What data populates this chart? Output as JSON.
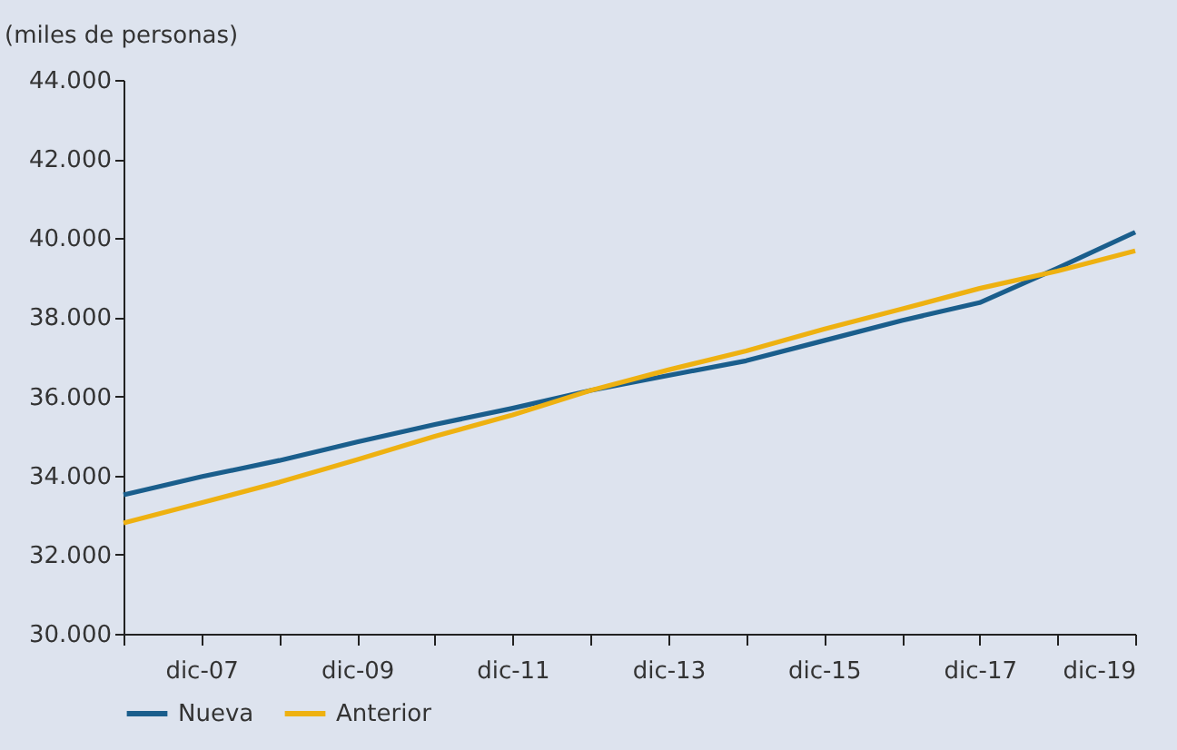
{
  "chart_data": {
    "type": "line",
    "ylabel": "(miles de personas)",
    "x": [
      "2006-12",
      "2007-12",
      "2008-12",
      "2009-12",
      "2010-12",
      "2011-12",
      "2012-12",
      "2013-12",
      "2014-12",
      "2015-12",
      "2016-12",
      "2017-12",
      "2018-12",
      "2019-12"
    ],
    "series": [
      {
        "name": "Nueva",
        "color": "#1a5e8c",
        "values": [
          33510,
          33970,
          34380,
          34850,
          35290,
          35700,
          36150,
          36530,
          36900,
          37410,
          37920,
          38370,
          39240,
          40150
        ]
      },
      {
        "name": "Anterior",
        "color": "#eeb111",
        "values": [
          32800,
          33310,
          33830,
          34400,
          34990,
          35530,
          36150,
          36670,
          37150,
          37700,
          38210,
          38730,
          39170,
          39680
        ]
      }
    ],
    "xlim": [
      "2006-12",
      "2019-12"
    ],
    "xticks": [
      {
        "value": "2006-12",
        "label": null
      },
      {
        "value": "2007-12",
        "label": "dic-07"
      },
      {
        "value": "2008-12",
        "label": null
      },
      {
        "value": "2009-12",
        "label": "dic-09"
      },
      {
        "value": "2010-12",
        "label": null
      },
      {
        "value": "2011-12",
        "label": "dic-11"
      },
      {
        "value": "2012-12",
        "label": null
      },
      {
        "value": "2013-12",
        "label": "dic-13"
      },
      {
        "value": "2014-12",
        "label": null
      },
      {
        "value": "2015-12",
        "label": "dic-15"
      },
      {
        "value": "2016-12",
        "label": null
      },
      {
        "value": "2017-12",
        "label": "dic-17"
      },
      {
        "value": "2018-12",
        "label": null
      },
      {
        "value": "2019-12",
        "label": "dic-19"
      }
    ],
    "ylim": [
      30000,
      44000
    ],
    "yticks": [
      {
        "value": 30000,
        "label": "30.000"
      },
      {
        "value": 32000,
        "label": "32.000"
      },
      {
        "value": 34000,
        "label": "34.000"
      },
      {
        "value": 36000,
        "label": "36.000"
      },
      {
        "value": 38000,
        "label": "38.000"
      },
      {
        "value": 40000,
        "label": "40.000"
      },
      {
        "value": 42000,
        "label": "42.000"
      },
      {
        "value": 44000,
        "label": "44.000"
      }
    ],
    "grid": false,
    "legend": "bottom",
    "marker": "none",
    "line_style": "solid"
  }
}
